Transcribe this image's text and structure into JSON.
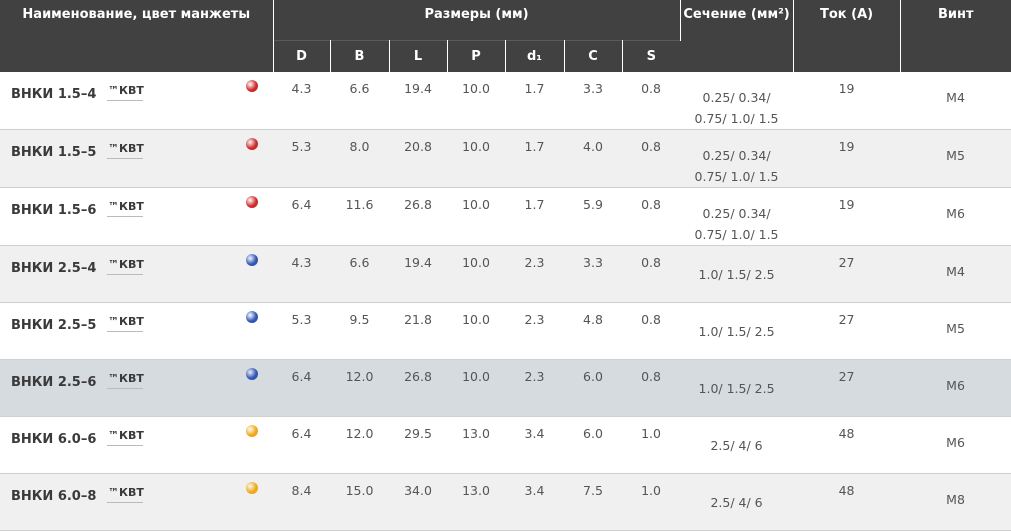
{
  "header": {
    "name": "Наименование, цвет манжеты",
    "sizes": "Размеры (мм)",
    "section": "Сечение (мм²)",
    "current": "Ток (А)",
    "screw": "Винт",
    "dims": [
      "D",
      "B",
      "L",
      "P",
      "d₁",
      "C",
      "S"
    ]
  },
  "rows": [
    {
      "name": "ВНКИ 1.5–4",
      "brand": "™КВТ",
      "color": "#cc2a2a",
      "dims": [
        "4.3",
        "6.6",
        "19.4",
        "10.0",
        "1.7",
        "3.3",
        "0.8"
      ],
      "section_1": "0.25/ 0.34/",
      "section_2": "0.75/ 1.0/ 1.5",
      "current": "19",
      "screw": "М4"
    },
    {
      "name": "ВНКИ 1.5–5",
      "brand": "™КВТ",
      "color": "#cc2a2a",
      "dims": [
        "5.3",
        "8.0",
        "20.8",
        "10.0",
        "1.7",
        "4.0",
        "0.8"
      ],
      "section_1": "0.25/ 0.34/",
      "section_2": "0.75/ 1.0/ 1.5",
      "current": "19",
      "screw": "М5"
    },
    {
      "name": "ВНКИ 1.5–6",
      "brand": "™КВТ",
      "color": "#cc2a2a",
      "dims": [
        "6.4",
        "11.6",
        "26.8",
        "10.0",
        "1.7",
        "5.9",
        "0.8"
      ],
      "section_1": "0.25/ 0.34/",
      "section_2": "0.75/ 1.0/ 1.5",
      "current": "19",
      "screw": "М6"
    },
    {
      "name": "ВНКИ 2.5–4",
      "brand": "™КВТ",
      "color": "#2f55b5",
      "dims": [
        "4.3",
        "6.6",
        "19.4",
        "10.0",
        "2.3",
        "3.3",
        "0.8"
      ],
      "section_1": "1.0/ 1.5/ 2.5",
      "section_2": "",
      "current": "27",
      "screw": "М4"
    },
    {
      "name": "ВНКИ 2.5–5",
      "brand": "™КВТ",
      "color": "#2f55b5",
      "dims": [
        "5.3",
        "9.5",
        "21.8",
        "10.0",
        "2.3",
        "4.8",
        "0.8"
      ],
      "section_1": "1.0/ 1.5/ 2.5",
      "section_2": "",
      "current": "27",
      "screw": "М5"
    },
    {
      "name": "ВНКИ 2.5–6",
      "brand": "™КВТ",
      "color": "#2f55b5",
      "dims": [
        "6.4",
        "12.0",
        "26.8",
        "10.0",
        "2.3",
        "6.0",
        "0.8"
      ],
      "section_1": "1.0/ 1.5/ 2.5",
      "section_2": "",
      "current": "27",
      "screw": "М6"
    },
    {
      "name": "ВНКИ 6.0–6",
      "brand": "™КВТ",
      "color": "#f0a818",
      "dims": [
        "6.4",
        "12.0",
        "29.5",
        "13.0",
        "3.4",
        "6.0",
        "1.0"
      ],
      "section_1": "2.5/ 4/ 6",
      "section_2": "",
      "current": "48",
      "screw": "М6"
    },
    {
      "name": "ВНКИ 6.0–8",
      "brand": "™КВТ",
      "color": "#f0a818",
      "dims": [
        "8.4",
        "15.0",
        "34.0",
        "13.0",
        "3.4",
        "7.5",
        "1.0"
      ],
      "section_1": "2.5/ 4/ 6",
      "section_2": "",
      "current": "48",
      "screw": "М8"
    }
  ],
  "highlighted_row": 5
}
